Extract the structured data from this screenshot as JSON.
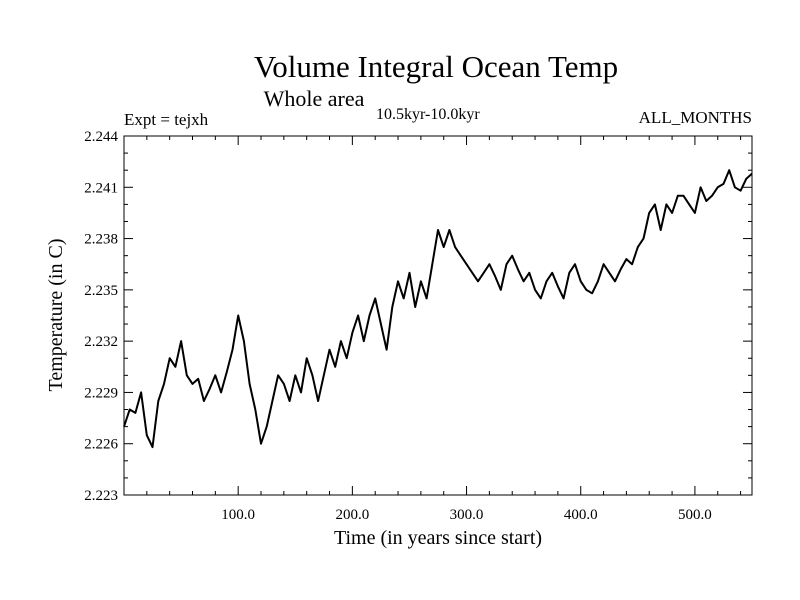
{
  "chart_data": {
    "type": "line",
    "title": "Volume Integral Ocean Temp",
    "subtitle": "Whole area",
    "period": "10.5kyr-10.0kyr",
    "expt_label": "Expt = tejxh",
    "months_label": "ALL_MONTHS",
    "xlabel": "Time (in years since start)",
    "ylabel": "Temperature (in C)",
    "xlim": [
      0,
      550
    ],
    "ylim": [
      2.223,
      2.244
    ],
    "x_ticks": [
      100,
      200,
      300,
      400,
      500
    ],
    "x_tick_labels": [
      "100.0",
      "200.0",
      "300.0",
      "400.0",
      "500.0"
    ],
    "y_ticks": [
      2.223,
      2.226,
      2.229,
      2.232,
      2.235,
      2.238,
      2.241,
      2.244
    ],
    "y_tick_labels": [
      "2.223",
      "2.226",
      "2.229",
      "2.232",
      "2.235",
      "2.238",
      "2.241",
      "2.244"
    ],
    "grid": false,
    "line_color": "#000000",
    "series": [
      {
        "name": "tejxh",
        "x": [
          0,
          5,
          10,
          15,
          20,
          25,
          30,
          35,
          40,
          45,
          50,
          55,
          60,
          65,
          70,
          75,
          80,
          85,
          90,
          95,
          100,
          105,
          110,
          115,
          120,
          125,
          130,
          135,
          140,
          145,
          150,
          155,
          160,
          165,
          170,
          175,
          180,
          185,
          190,
          195,
          200,
          205,
          210,
          215,
          220,
          225,
          230,
          235,
          240,
          245,
          250,
          255,
          260,
          265,
          270,
          275,
          280,
          285,
          290,
          295,
          300,
          305,
          310,
          315,
          320,
          325,
          330,
          335,
          340,
          345,
          350,
          355,
          360,
          365,
          370,
          375,
          380,
          385,
          390,
          395,
          400,
          405,
          410,
          415,
          420,
          425,
          430,
          435,
          440,
          445,
          450,
          455,
          460,
          465,
          470,
          475,
          480,
          485,
          490,
          495,
          500,
          505,
          510,
          515,
          520,
          525,
          530,
          535,
          540,
          545,
          550
        ],
        "values": [
          2.227,
          2.228,
          2.2278,
          2.229,
          2.2265,
          2.2258,
          2.2285,
          2.2295,
          2.231,
          2.2305,
          2.232,
          2.23,
          2.2295,
          2.2298,
          2.2285,
          2.2292,
          2.23,
          2.229,
          2.2302,
          2.2315,
          2.2335,
          2.232,
          2.2295,
          2.228,
          2.226,
          2.227,
          2.2285,
          2.23,
          2.2295,
          2.2285,
          2.23,
          2.229,
          2.231,
          2.23,
          2.2285,
          2.23,
          2.2315,
          2.2305,
          2.232,
          2.231,
          2.2325,
          2.2335,
          2.232,
          2.2335,
          2.2345,
          2.233,
          2.2315,
          2.234,
          2.2355,
          2.2345,
          2.236,
          2.234,
          2.2355,
          2.2345,
          2.2365,
          2.2385,
          2.2375,
          2.2385,
          2.2375,
          2.237,
          2.2365,
          2.236,
          2.2355,
          2.236,
          2.2365,
          2.2358,
          2.235,
          2.2365,
          2.237,
          2.2362,
          2.2355,
          2.236,
          2.235,
          2.2345,
          2.2355,
          2.236,
          2.2352,
          2.2345,
          2.236,
          2.2365,
          2.2355,
          2.235,
          2.2348,
          2.2355,
          2.2365,
          2.236,
          2.2355,
          2.2362,
          2.2368,
          2.2365,
          2.2375,
          2.238,
          2.2395,
          2.24,
          2.2385,
          2.24,
          2.2395,
          2.2405,
          2.2405,
          2.24,
          2.2395,
          2.241,
          2.2402,
          2.2405,
          2.241,
          2.2412,
          2.242,
          2.241,
          2.2408,
          2.2415,
          2.2418
        ]
      }
    ]
  }
}
